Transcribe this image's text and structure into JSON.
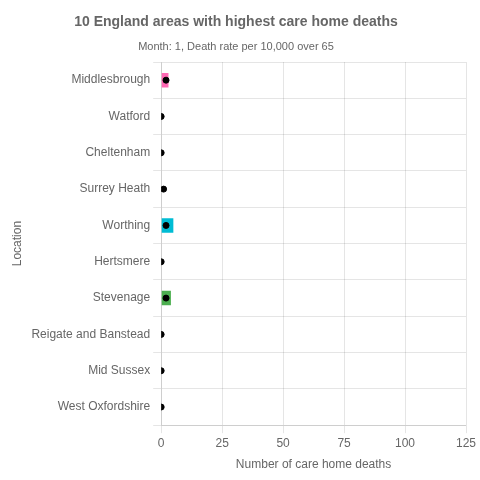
{
  "chart_data": {
    "type": "bar",
    "orientation": "horizontal",
    "title": "10 England areas with highest care home deaths",
    "subtitle": "Month: 1, Death rate per 10,000 over 65",
    "x_label": "Number of care home deaths",
    "y_label": "Location",
    "categories": [
      "Middlesbrough",
      "Watford",
      "Cheltenham",
      "Surrey Heath",
      "Worthing",
      "Hertsmere",
      "Stevenage",
      "Reigate and Banstead",
      "Mid Sussex",
      "West Oxfordshire"
    ],
    "series": [
      {
        "type": "bar",
        "values": [
          3,
          0,
          0,
          0,
          5,
          0,
          4,
          0,
          0,
          0
        ],
        "colors": [
          "#FF69B4",
          null,
          null,
          null,
          "#00BCD4",
          null,
          "#4CAF50",
          null,
          null,
          null
        ]
      },
      {
        "type": "scatter",
        "marker": "o",
        "color": "#000000",
        "values": [
          2,
          0,
          0,
          1,
          2,
          0,
          2,
          0,
          0,
          0
        ]
      }
    ],
    "xlim": [
      0,
      125
    ],
    "xticks": [
      0,
      25,
      50,
      75,
      100,
      125
    ],
    "grid": true
  }
}
